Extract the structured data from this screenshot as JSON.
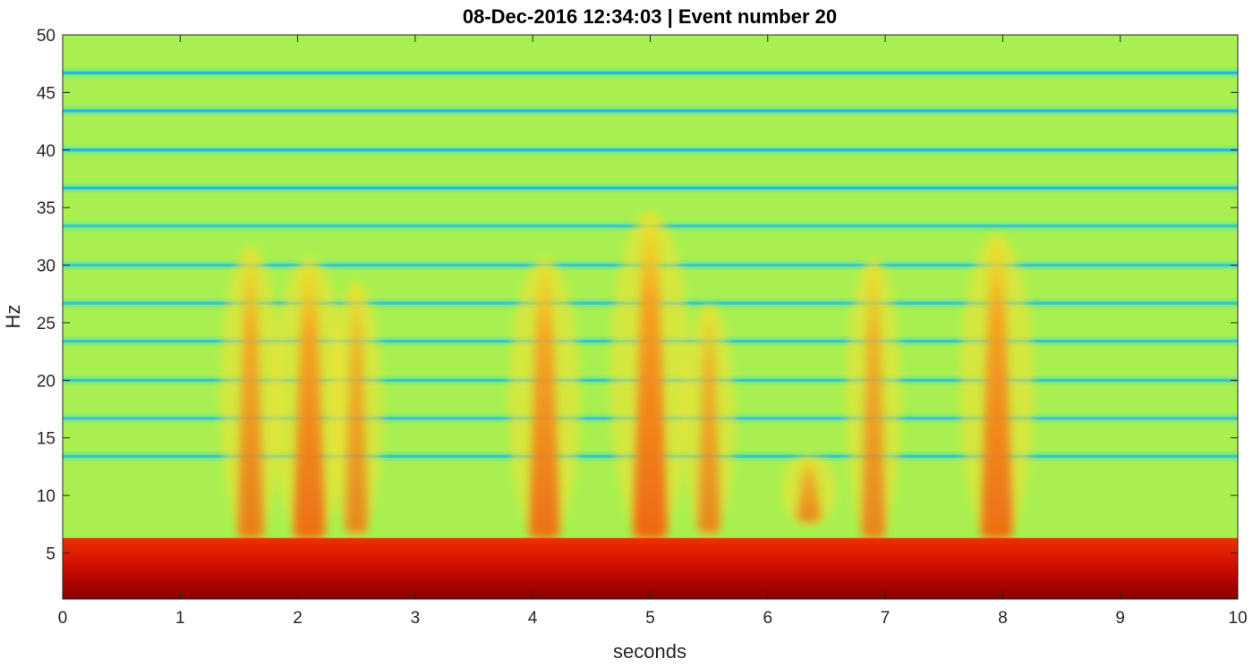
{
  "chart_data": {
    "type": "heatmap",
    "title": "08-Dec-2016 12:34:03 | Event number 20",
    "xlabel": "seconds",
    "ylabel": "Hz",
    "xlim": [
      0,
      10
    ],
    "ylim": [
      1,
      50
    ],
    "x_ticks": [
      0,
      1,
      2,
      3,
      4,
      5,
      6,
      7,
      8,
      9,
      10
    ],
    "y_ticks": [
      5,
      10,
      15,
      20,
      25,
      30,
      35,
      40,
      45,
      50
    ],
    "colormap": "jet",
    "grid": false,
    "colors": {
      "background": "#a8f050",
      "band_line": "#1ab8e8",
      "strong_low": "#d01000",
      "event": "#f07010"
    },
    "low_frequency_band": {
      "freq_min": 1,
      "freq_max": 6.3
    },
    "horizontal_bands_hz": [
      46.7,
      43.4,
      40.0,
      36.7,
      33.4,
      30.0,
      26.7,
      23.4,
      20.0,
      16.7,
      13.4
    ],
    "events": [
      {
        "time": 1.6,
        "freq_min": 6.5,
        "freq_max": 31,
        "intensity": 0.65
      },
      {
        "time": 2.1,
        "freq_min": 6.5,
        "freq_max": 30,
        "intensity": 0.9
      },
      {
        "time": 2.5,
        "freq_min": 7,
        "freq_max": 28,
        "intensity": 0.5
      },
      {
        "time": 4.1,
        "freq_min": 6.5,
        "freq_max": 30,
        "intensity": 0.85
      },
      {
        "time": 5.0,
        "freq_min": 6.5,
        "freq_max": 34,
        "intensity": 1.0
      },
      {
        "time": 5.5,
        "freq_min": 7,
        "freq_max": 26,
        "intensity": 0.5
      },
      {
        "time": 6.35,
        "freq_min": 8,
        "freq_max": 13,
        "intensity": 0.55
      },
      {
        "time": 6.9,
        "freq_min": 6.5,
        "freq_max": 30,
        "intensity": 0.55
      },
      {
        "time": 7.95,
        "freq_min": 6.5,
        "freq_max": 32,
        "intensity": 0.9
      }
    ]
  }
}
